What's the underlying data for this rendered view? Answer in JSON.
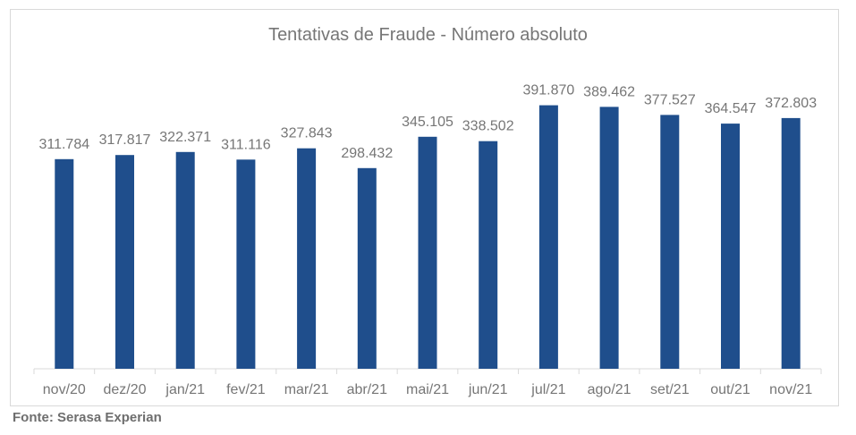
{
  "chart_data": {
    "type": "bar",
    "title": "Tentativas de Fraude - Número absoluto",
    "categories": [
      "nov/20",
      "dez/20",
      "jan/21",
      "fev/21",
      "mar/21",
      "abr/21",
      "mai/21",
      "jun/21",
      "jul/21",
      "ago/21",
      "set/21",
      "out/21",
      "nov/21"
    ],
    "values": [
      311784,
      317817,
      322371,
      311116,
      327843,
      298432,
      345105,
      338502,
      391870,
      389462,
      377527,
      364547,
      372803
    ],
    "value_labels": [
      "311.784",
      "317.817",
      "322.371",
      "311.116",
      "327.843",
      "298.432",
      "345.105",
      "338.502",
      "391.870",
      "389.462",
      "377.527",
      "364.547",
      "372.803"
    ],
    "ylim": [
      0,
      410000
    ],
    "grid": false,
    "bar_color": "#1f4e8c",
    "label_color": "#767676"
  },
  "footer": {
    "source": "Fonte: Serasa Experian"
  }
}
